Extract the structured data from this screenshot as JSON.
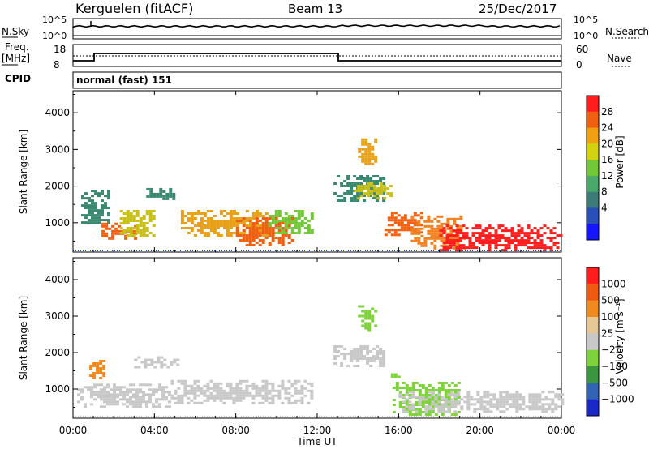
{
  "header": {
    "station": "Kerguelen (fitACF)",
    "beam": "Beam 13",
    "date": "25/Dec/2017"
  },
  "nsky_panel": {
    "left_label": "N.Sky",
    "right_label": "N.Search",
    "ticks_left": [
      "10^5",
      "10^0"
    ],
    "ticks_right": [
      "10^5",
      "10^0"
    ]
  },
  "freq_panel": {
    "label_line1": "Freq.",
    "label_line2": "[MHz]",
    "right_label": "Nave",
    "ticks_left": [
      "18",
      "8"
    ],
    "ticks_right": [
      "60",
      "0"
    ]
  },
  "cpid": {
    "label": "CPID",
    "text": "normal (fast) 151"
  },
  "x_axis": {
    "label": "Time UT",
    "ticks": [
      "00:00",
      "04:00",
      "08:00",
      "12:00",
      "16:00",
      "20:00",
      "00:00"
    ]
  },
  "chart_data": [
    {
      "type": "heatmap",
      "name": "power",
      "ylabel": "Slant Range [km]",
      "yticks": [
        1000,
        2000,
        3000,
        4000
      ],
      "ylim": [
        200,
        4600
      ],
      "xlim": [
        0,
        24
      ],
      "colorbar": {
        "label": "Power [dB]",
        "ticks": [
          "28",
          "24",
          "20",
          "16",
          "12",
          "8",
          "4"
        ],
        "colors": [
          "#1515ff",
          "#2850b8",
          "#3c7c78",
          "#49a86a",
          "#72c836",
          "#d2d210",
          "#f0a010",
          "#f06010",
          "#ff1e1e"
        ]
      },
      "regions": [
        {
          "t0": 0.4,
          "t1": 1.7,
          "r0": 1000,
          "r1": 1900,
          "color": "#3a8870"
        },
        {
          "t0": 1.4,
          "t1": 3.0,
          "r0": 550,
          "r1": 1000,
          "color": "#f06010"
        },
        {
          "t0": 2.3,
          "t1": 4.0,
          "r0": 650,
          "r1": 1350,
          "color": "#c8c018"
        },
        {
          "t0": 3.6,
          "t1": 5.0,
          "r0": 1650,
          "r1": 1950,
          "color": "#3a8870"
        },
        {
          "t0": 5.3,
          "t1": 9.5,
          "r0": 650,
          "r1": 1350,
          "color": "#e8a018"
        },
        {
          "t0": 8.0,
          "t1": 10.8,
          "r0": 400,
          "r1": 1150,
          "color": "#f06010"
        },
        {
          "t0": 9.6,
          "t1": 11.8,
          "r0": 700,
          "r1": 1350,
          "color": "#72c836"
        },
        {
          "t0": 12.8,
          "t1": 15.3,
          "r0": 1600,
          "r1": 2300,
          "color": "#3a8870"
        },
        {
          "t0": 14.0,
          "t1": 14.8,
          "r0": 2600,
          "r1": 3300,
          "color": "#e8a018"
        },
        {
          "t0": 13.8,
          "t1": 15.6,
          "r0": 1700,
          "r1": 2100,
          "color": "#c8c018"
        },
        {
          "t0": 15.3,
          "t1": 17.2,
          "r0": 700,
          "r1": 1300,
          "color": "#f06010"
        },
        {
          "t0": 16.6,
          "t1": 19.2,
          "r0": 300,
          "r1": 1200,
          "color": "#f08020"
        },
        {
          "t0": 18.0,
          "t1": 24.0,
          "r0": 250,
          "r1": 950,
          "color": "#ff1e1e"
        }
      ]
    },
    {
      "type": "heatmap",
      "name": "velocity",
      "ylabel": "Slant Range [km]",
      "yticks": [
        1000,
        2000,
        3000,
        4000
      ],
      "ylim": [
        200,
        4600
      ],
      "xlim": [
        0,
        24
      ],
      "colorbar": {
        "label": "Velocity [m s⁻¹]",
        "ticks": [
          "1000",
          "500",
          "100",
          "25",
          "−25",
          "−100",
          "−500",
          "−1000"
        ],
        "colors": [
          "#1a28c8",
          "#3264b4",
          "#3c9640",
          "#7ed23c",
          "#c8c8c8",
          "#e6c896",
          "#f08a1e",
          "#f05a10",
          "#ff1e1e"
        ]
      },
      "regions": [
        {
          "t0": 0.8,
          "t1": 1.5,
          "r0": 1300,
          "r1": 1800,
          "color": "#f08a1e"
        },
        {
          "t0": 0.2,
          "t1": 4.8,
          "r0": 500,
          "r1": 1150,
          "color": "#c8c8c8"
        },
        {
          "t0": 4.8,
          "t1": 11.8,
          "r0": 600,
          "r1": 1250,
          "color": "#c8c8c8"
        },
        {
          "t0": 3.0,
          "t1": 5.2,
          "r0": 1600,
          "r1": 1900,
          "color": "#c8c8c8"
        },
        {
          "t0": 12.8,
          "t1": 15.2,
          "r0": 1650,
          "r1": 2200,
          "color": "#c8c8c8"
        },
        {
          "t0": 14.0,
          "t1": 14.8,
          "r0": 2600,
          "r1": 3300,
          "color": "#7ed23c"
        },
        {
          "t0": 15.7,
          "t1": 19.0,
          "r0": 300,
          "r1": 1200,
          "color": "#7ed23c"
        },
        {
          "t0": 16.0,
          "t1": 24.0,
          "r0": 350,
          "r1": 950,
          "color": "#c8c8c8"
        },
        {
          "t0": 15.3,
          "t1": 16.0,
          "r0": 1300,
          "r1": 1500,
          "color": "#7ed23c"
        }
      ]
    }
  ]
}
